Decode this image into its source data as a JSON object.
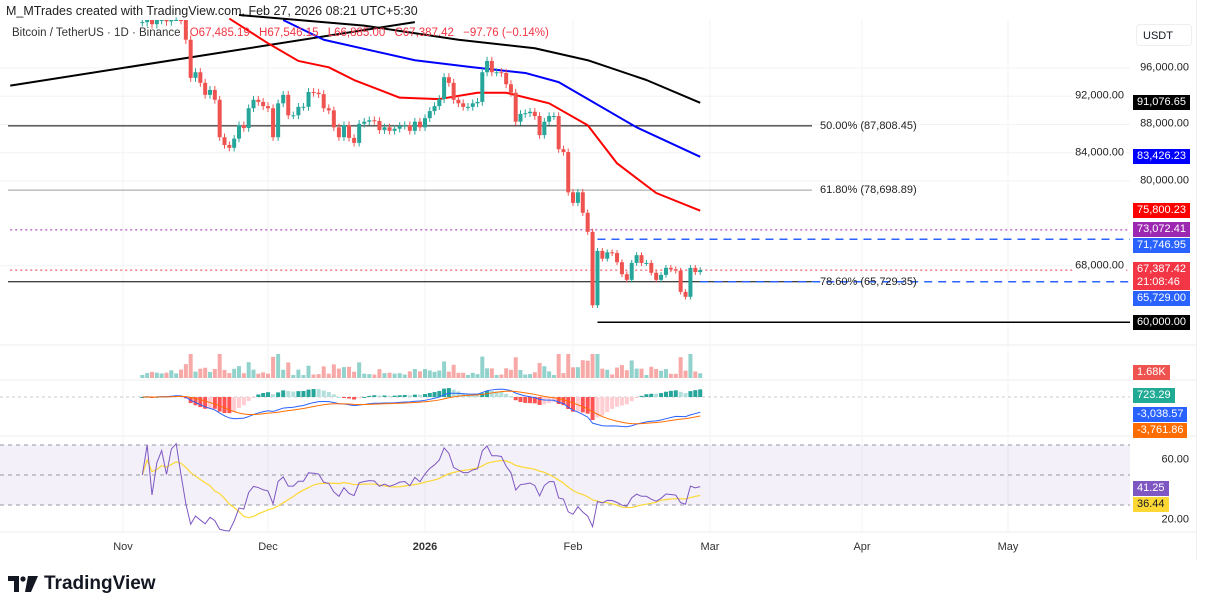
{
  "header": {
    "credit": "M_MTrades created with TradingView.com, Feb 27, 2026 08:21 UTC+5:30",
    "symbol": "Bitcoin / TetherUS · 1D · Binance",
    "open": "O67,485.19",
    "high": "H67,546.15",
    "low": "L66,885.00",
    "close": "C67,387.42",
    "change": "−97.76 (−0.14%)"
  },
  "axis": {
    "currency": "USDT",
    "price_ticks": [
      {
        "v": 96000,
        "t": "96,000.00"
      },
      {
        "v": 92000,
        "t": "92,000.00"
      },
      {
        "v": 88000,
        "t": "88,000.00"
      },
      {
        "v": 84000,
        "t": "84,000.00"
      },
      {
        "v": 80000,
        "t": "80,000.00"
      },
      {
        "v": 68000,
        "t": "68,000.00"
      }
    ],
    "rsi_ticks": [
      {
        "v": 60,
        "t": "60.00"
      },
      {
        "v": 20,
        "t": "20.00"
      }
    ],
    "time_ticks": [
      {
        "d": "2025-11-01",
        "t": "Nov"
      },
      {
        "d": "2025-12-01",
        "t": "Dec"
      },
      {
        "d": "2026-01-01",
        "t": "2026",
        "bold": true
      },
      {
        "d": "2026-02-01",
        "t": "Feb"
      },
      {
        "d": "2026-03-01",
        "t": "Mar"
      },
      {
        "d": "2026-04-01",
        "t": "Apr"
      },
      {
        "d": "2026-05-01",
        "t": "May"
      }
    ]
  },
  "price_badges": [
    {
      "v": 91076.65,
      "t": "91,076.65",
      "color": "#000000"
    },
    {
      "v": 83426.23,
      "t": "83,426.23",
      "color": "#0000ff"
    },
    {
      "v": 75800.23,
      "t": "75,800.23",
      "color": "#ff0000"
    },
    {
      "v": 73072.41,
      "t": "73,072.41",
      "color": "#9c27b0"
    },
    {
      "v": 71746.95,
      "t": "71,746.95",
      "color": "#2962ff"
    },
    {
      "v": 67387.42,
      "t": "67,387.42",
      "t2": "21:08:46",
      "color": "#f23645"
    },
    {
      "v": 65729.0,
      "t": "65,729.00",
      "color": "#2962ff"
    },
    {
      "v": 60000.0,
      "t": "60,000.00",
      "color": "#000000"
    }
  ],
  "indicator_badges": {
    "volume": {
      "t": "1.68K",
      "color": "#ef5350"
    },
    "macd_hist": {
      "t": "723.29",
      "color": "#22ab94"
    },
    "macd": {
      "t": "-3,038.57",
      "color": "#2962ff"
    },
    "signal": {
      "t": "-3,761.86",
      "color": "#ff6d00"
    },
    "rsi": {
      "t": "41.25",
      "color": "#7e57c2"
    },
    "rsi_ma": {
      "t": "36.44",
      "color": "#fdd835"
    }
  },
  "fib_levels": [
    {
      "v": 87808.45,
      "t": "50.00% (87,808.45)",
      "color": "#000000"
    },
    {
      "v": 78698.89,
      "t": "61.80% (78,698.89)",
      "color": "#9e9e9e"
    },
    {
      "v": 65729.35,
      "t": "78.60% (65,729.35)",
      "color": "#000000"
    }
  ],
  "chart_data": {
    "type": "candlestick",
    "interval": "1D",
    "date_range": [
      "2025-11-05",
      "2026-02-27"
    ],
    "closes": [
      102500,
      103000,
      102200,
      102800,
      103200,
      102600,
      103800,
      104200,
      102800,
      100000,
      94600,
      95400,
      93900,
      92200,
      92900,
      91500,
      86200,
      85100,
      84700,
      86000,
      87900,
      87500,
      90300,
      91500,
      91200,
      90600,
      90300,
      86200,
      91000,
      92200,
      89300,
      89300,
      90500,
      90500,
      92600,
      92500,
      92300,
      90300,
      90000,
      87600,
      86200,
      87900,
      86100,
      85400,
      88100,
      88400,
      88600,
      88500,
      87200,
      87600,
      87100,
      87400,
      87800,
      87900,
      87100,
      88400,
      87600,
      88900,
      89900,
      90600,
      91600,
      94700,
      93900,
      91500,
      91000,
      90500,
      90500,
      91000,
      91200,
      95400,
      97000,
      95400,
      95400,
      95300,
      93700,
      92500,
      88400,
      89500,
      89600,
      89800,
      89200,
      86500,
      88400,
      89200,
      89200,
      84500,
      84100,
      78400,
      76900,
      78400,
      75500,
      72800,
      62400,
      70100,
      69000,
      69900,
      69800,
      68500,
      66800,
      66000,
      68400,
      69500,
      68400,
      68400,
      67000,
      66000,
      66700,
      67700,
      67500,
      67300,
      64300,
      63600,
      67700,
      67100,
      67387.42
    ],
    "moving_averages": [
      {
        "color": "#ff0000",
        "points": [
          [
            "2025-11-23",
            103000
          ],
          [
            "2025-12-01",
            99500
          ],
          [
            "2025-12-07",
            97000
          ],
          [
            "2025-12-13",
            96100
          ],
          [
            "2025-12-18",
            94300
          ],
          [
            "2025-12-27",
            91800
          ],
          [
            "2026-01-04",
            91600
          ],
          [
            "2026-01-12",
            92500
          ],
          [
            "2026-01-18",
            92500
          ],
          [
            "2026-01-27",
            91000
          ],
          [
            "2026-02-04",
            87900
          ],
          [
            "2026-02-10",
            82500
          ],
          [
            "2026-02-18",
            78300
          ],
          [
            "2026-02-27",
            75800.23
          ]
        ]
      },
      {
        "color": "#0000ff",
        "points": [
          [
            "2025-12-04",
            102800
          ],
          [
            "2025-12-12",
            100000
          ],
          [
            "2025-12-30",
            97100
          ],
          [
            "2026-01-11",
            96100
          ],
          [
            "2026-01-22",
            95300
          ],
          [
            "2026-01-29",
            94000
          ],
          [
            "2026-02-14",
            87600
          ],
          [
            "2026-02-27",
            83426.23
          ]
        ]
      },
      {
        "color": "#000000",
        "points": [
          [
            "2025-11-25",
            103500
          ],
          [
            "2025-12-20",
            102000
          ],
          [
            "2026-01-08",
            100000
          ],
          [
            "2026-01-24",
            98800
          ],
          [
            "2026-02-04",
            97100
          ],
          [
            "2026-02-16",
            94300
          ],
          [
            "2026-02-27",
            91076.65
          ]
        ]
      }
    ],
    "trendline": {
      "color": "#000000",
      "points": [
        [
          "2025-10-09",
          93500
        ],
        [
          "2025-12-30",
          102500
        ]
      ]
    },
    "horizontal_lines": [
      {
        "v": 73072.41,
        "color": "#9c27b0",
        "style": "dotted",
        "from": "2025-10-09"
      },
      {
        "v": 71746.95,
        "color": "#2962ff",
        "style": "dashed",
        "from": "2026-02-06"
      },
      {
        "v": 65729.0,
        "color": "#2962ff",
        "style": "dashed",
        "from": "2026-02-27"
      },
      {
        "v": 67387.42,
        "color": "#f23645",
        "style": "dotted",
        "from": "2025-10-09"
      },
      {
        "v": 60000.0,
        "color": "#000000",
        "style": "solid",
        "from": "2026-02-06"
      }
    ],
    "up_color": "#26a69a",
    "down_color": "#ef5350"
  }
}
